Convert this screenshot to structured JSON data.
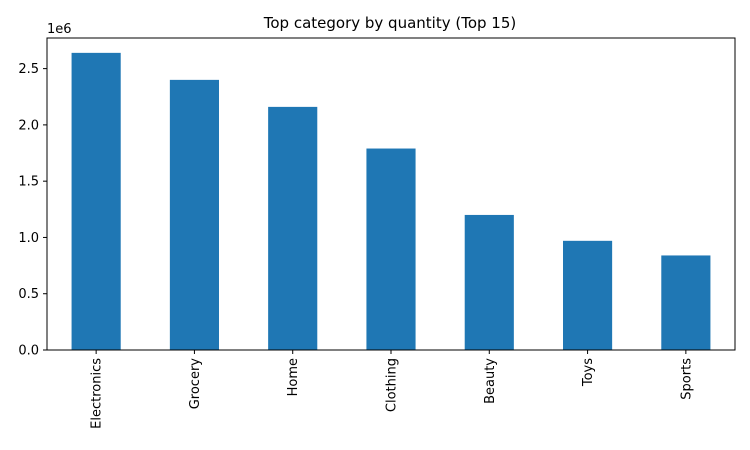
{
  "chart_data": {
    "type": "bar",
    "title": "Top category by quantity (Top 15)",
    "xlabel": "",
    "ylabel": "",
    "y_multiplier_label": "1e6",
    "categories": [
      "Electronics",
      "Grocery",
      "Home",
      "Clothing",
      "Beauty",
      "Toys",
      "Sports"
    ],
    "values": [
      2640000,
      2400000,
      2160000,
      1790000,
      1200000,
      970000,
      840000
    ],
    "ylim": [
      0,
      2772000
    ],
    "yticks": [
      0,
      500000,
      1000000,
      1500000,
      2000000,
      2500000
    ],
    "ytick_labels": [
      "0.0",
      "0.5",
      "1.0",
      "1.5",
      "2.0",
      "2.5"
    ],
    "bar_color": "#1f77b4",
    "grid": false,
    "legend": "none"
  }
}
